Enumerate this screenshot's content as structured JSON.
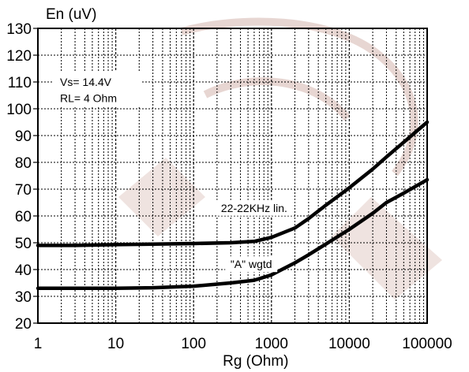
{
  "chart_data": {
    "type": "line",
    "xlabel": "Rg (Ohm)",
    "ylabel": "En (uV)",
    "xscale": "log",
    "xlim": [
      1,
      100000
    ],
    "ylim": [
      20,
      130
    ],
    "x_ticks": [
      "1",
      "10",
      "100",
      "1000",
      "10000",
      "100000"
    ],
    "y_ticks": [
      "130",
      "120",
      "110",
      "100",
      "90",
      "80",
      "70",
      "60",
      "50",
      "40",
      "30",
      "20"
    ],
    "grid": true,
    "annotations": [
      {
        "text": "Vs= 14.4V",
        "x": 2.2,
        "y": 110
      },
      {
        "text": "RL= 4 Ohm",
        "x": 2.2,
        "y": 104
      },
      {
        "text": "22-22KHz lin.",
        "x": 600,
        "y": 63
      },
      {
        "text": "\"A\" wgtd",
        "x": 550,
        "y": 42
      }
    ],
    "series": [
      {
        "name": "22-22KHz lin.",
        "x": [
          1,
          3,
          10,
          30,
          100,
          300,
          600,
          1000,
          2000,
          3000,
          5000,
          10000,
          20000,
          30000,
          50000,
          100000
        ],
        "y": [
          49,
          49,
          49.3,
          49.5,
          49.7,
          50,
          50.5,
          52,
          55.5,
          59,
          64,
          70.5,
          77.5,
          82,
          87.5,
          95
        ]
      },
      {
        "name": "\"A\" wgtd",
        "x": [
          1,
          3,
          10,
          30,
          100,
          300,
          600,
          1000,
          2000,
          3000,
          5000,
          10000,
          20000,
          30000,
          50000,
          100000
        ],
        "y": [
          33,
          33,
          33,
          33.2,
          33.8,
          35,
          36,
          38,
          42.5,
          45.5,
          49.5,
          55,
          61,
          65,
          68.5,
          73.5
        ]
      }
    ]
  }
}
